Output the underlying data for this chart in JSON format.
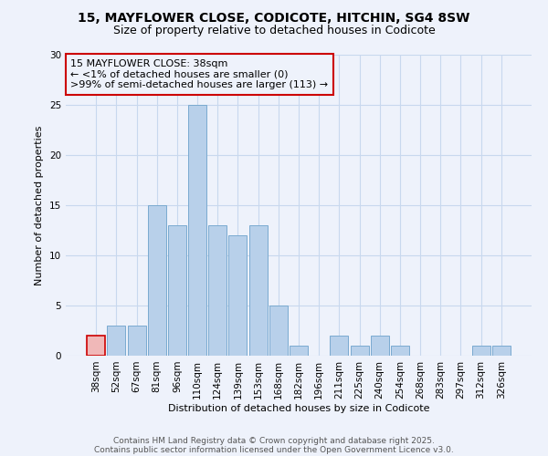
{
  "title": "15, MAYFLOWER CLOSE, CODICOTE, HITCHIN, SG4 8SW",
  "subtitle": "Size of property relative to detached houses in Codicote",
  "xlabel": "Distribution of detached houses by size in Codicote",
  "ylabel": "Number of detached properties",
  "bins": [
    "38sqm",
    "52sqm",
    "67sqm",
    "81sqm",
    "96sqm",
    "110sqm",
    "124sqm",
    "139sqm",
    "153sqm",
    "168sqm",
    "182sqm",
    "196sqm",
    "211sqm",
    "225sqm",
    "240sqm",
    "254sqm",
    "268sqm",
    "283sqm",
    "297sqm",
    "312sqm",
    "326sqm"
  ],
  "values": [
    2,
    3,
    3,
    15,
    13,
    25,
    13,
    12,
    13,
    5,
    1,
    0,
    2,
    1,
    2,
    1,
    0,
    0,
    0,
    1,
    1
  ],
  "highlight_index": 0,
  "bar_color": "#b8d0ea",
  "highlight_color": "#f0b8b8",
  "bar_edge_color": "#7aaad0",
  "highlight_edge_color": "#cc0000",
  "annotation_box_text": "15 MAYFLOWER CLOSE: 38sqm\n← <1% of detached houses are smaller (0)\n>99% of semi-detached houses are larger (113) →",
  "annotation_box_edge_color": "#cc0000",
  "ylim": [
    0,
    30
  ],
  "yticks": [
    0,
    5,
    10,
    15,
    20,
    25,
    30
  ],
  "footnote1": "Contains HM Land Registry data © Crown copyright and database right 2025.",
  "footnote2": "Contains public sector information licensed under the Open Government Licence v3.0.",
  "background_color": "#eef2fb",
  "grid_color": "#c8d8ee",
  "title_fontsize": 10,
  "subtitle_fontsize": 9,
  "axis_label_fontsize": 8,
  "tick_fontsize": 7.5,
  "footnote_fontsize": 6.5,
  "annotation_fontsize": 8
}
